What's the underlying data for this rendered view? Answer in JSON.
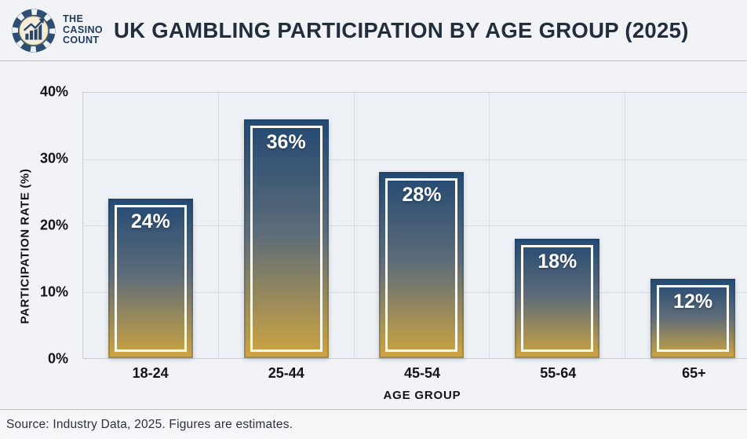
{
  "header": {
    "logo": {
      "icon": "casino-chip-chart-icon",
      "lines": [
        "THE",
        "CASINO",
        "COUNT"
      ]
    },
    "title": "UK GAMBLING PARTICIPATION BY AGE GROUP (2025)"
  },
  "chart_data": {
    "type": "bar",
    "title": "UK GAMBLING PARTICIPATION BY AGE GROUP (2025)",
    "categories": [
      "18-24",
      "25-44",
      "45-54",
      "55-64",
      "65+"
    ],
    "values": [
      24,
      36,
      28,
      18,
      12
    ],
    "value_labels": [
      "24%",
      "36%",
      "28%",
      "18%",
      "12%"
    ],
    "xlabel": "AGE GROUP",
    "ylabel": "PARTICIPATION RATE (%)",
    "ylim": [
      0,
      40
    ],
    "yticks": [
      0,
      10,
      20,
      30,
      40
    ],
    "ytick_labels": [
      "0%",
      "10%",
      "20%",
      "30%",
      "40%"
    ],
    "grid": true,
    "legend": false,
    "bar_gradient": {
      "top": "#234973",
      "mid": "#5d6c79",
      "bottom": "#cfa540"
    },
    "bar_frame_color": "#fbfbf1"
  },
  "footer": {
    "source": "Source: Industry Data, 2025. Figures are estimates."
  },
  "colors": {
    "brand_navy": "#1f3a5c",
    "title_text": "#232e3c",
    "page_background": "#f1f3f6",
    "plot_background": "#edf0f4",
    "gridline": "#d8dce1",
    "gold": "#cfa540"
  }
}
